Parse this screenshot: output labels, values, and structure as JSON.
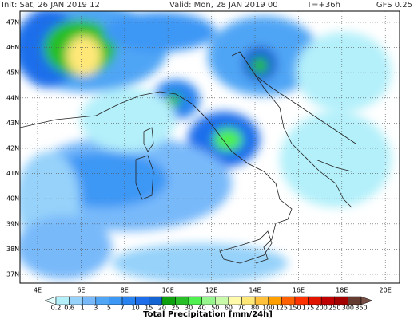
{
  "header": {
    "init": "Init: Sat, 26 JAN 2019  12",
    "valid": "Valid: Mon, 28 JAN 2019  00",
    "step": "T=+36h",
    "model": "GFS 0.25"
  },
  "map": {
    "lat_labels": [
      "47N",
      "46N",
      "45N",
      "44N",
      "43N",
      "42N",
      "41N",
      "40N",
      "39N",
      "38N",
      "37N"
    ],
    "lon_labels": [
      "4E",
      "6E",
      "8E",
      "10E",
      "12E",
      "14E",
      "16E",
      "18E",
      "20E"
    ]
  },
  "legend": {
    "title": "Total Precipitation [mm/24h]",
    "levels": [
      0.2,
      0.6,
      1,
      3,
      5,
      7,
      10,
      15,
      20,
      25,
      30,
      40,
      50,
      60,
      70,
      80,
      100,
      125,
      150,
      175,
      200,
      250,
      300,
      350
    ],
    "colors": [
      "#e6ffff",
      "#b4f0fa",
      "#96d2fa",
      "#78b9fa",
      "#50a5f5",
      "#3c97f5",
      "#2882f0",
      "#1e6eeb",
      "#1464d2",
      "#0fa00f",
      "#28be28",
      "#50f050",
      "#96f58c",
      "#c8faaa",
      "#fffaaa",
      "#ffe878",
      "#ffc03c",
      "#ffa000",
      "#ff6000",
      "#ff3200",
      "#e11400",
      "#c00000",
      "#a50000",
      "#643c32",
      "#785046"
    ]
  }
}
